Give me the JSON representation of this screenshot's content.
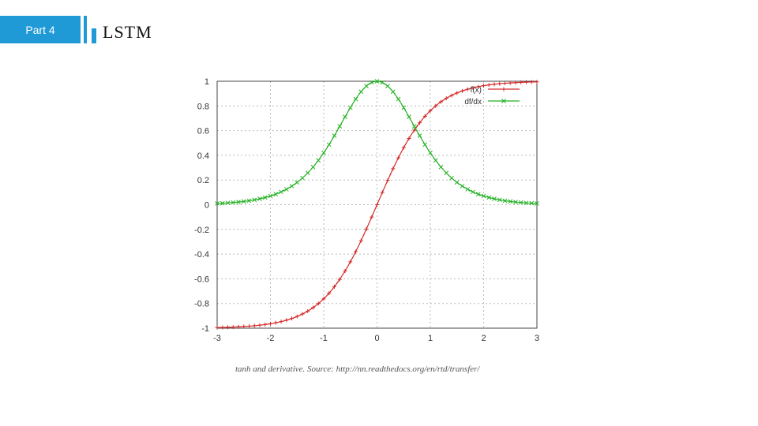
{
  "header": {
    "part_label": "Part 4",
    "title": "LSTM",
    "accent_color": "#1f9ad6"
  },
  "caption": "tanh and derivative. Source: http://nn.readthedocs.org/en/rtd/transfer/",
  "chart_data": {
    "type": "line",
    "title": "",
    "xlabel": "",
    "ylabel": "",
    "xlim": [
      -3,
      3
    ],
    "ylim": [
      -1,
      1
    ],
    "x_ticks": [
      "-3",
      "-2",
      "-1",
      "0",
      "1",
      "2",
      "3"
    ],
    "y_ticks": [
      "1",
      "0.8",
      "0.6",
      "0.4",
      "0.2",
      "0",
      "-0.2",
      "-0.4",
      "-0.6",
      "-0.8",
      "-1"
    ],
    "grid": true,
    "legend_position": "top-right",
    "x": [
      -3,
      -2.5,
      -2,
      -1.5,
      -1,
      -0.75,
      -0.5,
      -0.25,
      0,
      0.25,
      0.5,
      0.75,
      1,
      1.5,
      2,
      2.5,
      3
    ],
    "series": [
      {
        "name": "f(x)",
        "color": "#d42a2a",
        "marker": "+",
        "values": [
          -0.995,
          -0.987,
          -0.964,
          -0.905,
          -0.762,
          -0.635,
          -0.462,
          -0.245,
          0,
          0.245,
          0.462,
          0.635,
          0.762,
          0.905,
          0.964,
          0.987,
          0.995
        ]
      },
      {
        "name": "df/dx",
        "color": "#22b022",
        "marker": "x",
        "values": [
          0.01,
          0.027,
          0.071,
          0.181,
          0.42,
          0.597,
          0.786,
          0.94,
          1,
          0.94,
          0.786,
          0.597,
          0.42,
          0.181,
          0.071,
          0.027,
          0.01
        ]
      }
    ]
  }
}
